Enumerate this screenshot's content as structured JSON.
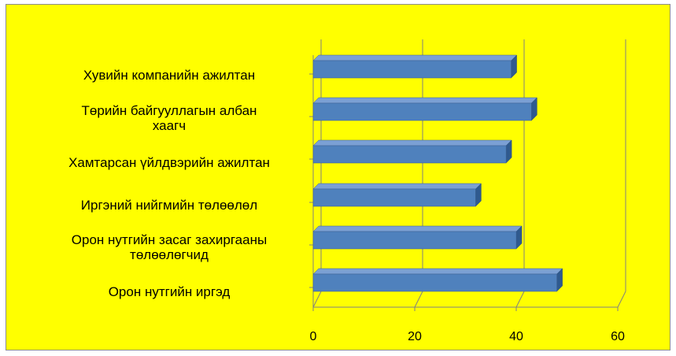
{
  "chart_data": {
    "type": "bar",
    "orientation": "horizontal",
    "style": "3d-clustered-bar",
    "categories": [
      "Хувийн компанийн ажилтан",
      "Төрийн байгууллагын албан хаагч",
      "Хамтарсан үйлдвэрийн ажилтан",
      "Иргэний нийгмийн төлөөлөл",
      "Орон нутгийн засаг захиргааны төлөөлөгчид",
      "Орон нутгийн иргэд"
    ],
    "category_lines": [
      [
        "Хувийн компанийн ажилтан"
      ],
      [
        "Төрийн байгууллагын албан",
        "хаагч"
      ],
      [
        "Хамтарсан үйлдвэрийн ажилтан"
      ],
      [
        "Иргэний нийгмийн төлөөлөл"
      ],
      [
        "Орон нутгийн засаг захиргааны",
        "төлөөлөгчид"
      ],
      [
        "Орон нутгийн иргэд"
      ]
    ],
    "values": [
      39,
      43,
      38,
      32,
      40,
      48
    ],
    "xlim": [
      0,
      60
    ],
    "xticks": [
      "0",
      "20",
      "40",
      "60"
    ],
    "grid": true,
    "legend": "none",
    "title": "",
    "xlabel": "",
    "ylabel": ""
  },
  "colors": {
    "background": "#ffff00",
    "bar_front": "#4f81bd",
    "bar_top": "#7ba0d4",
    "bar_side": "#2f5a8f",
    "grid": "#808080"
  }
}
